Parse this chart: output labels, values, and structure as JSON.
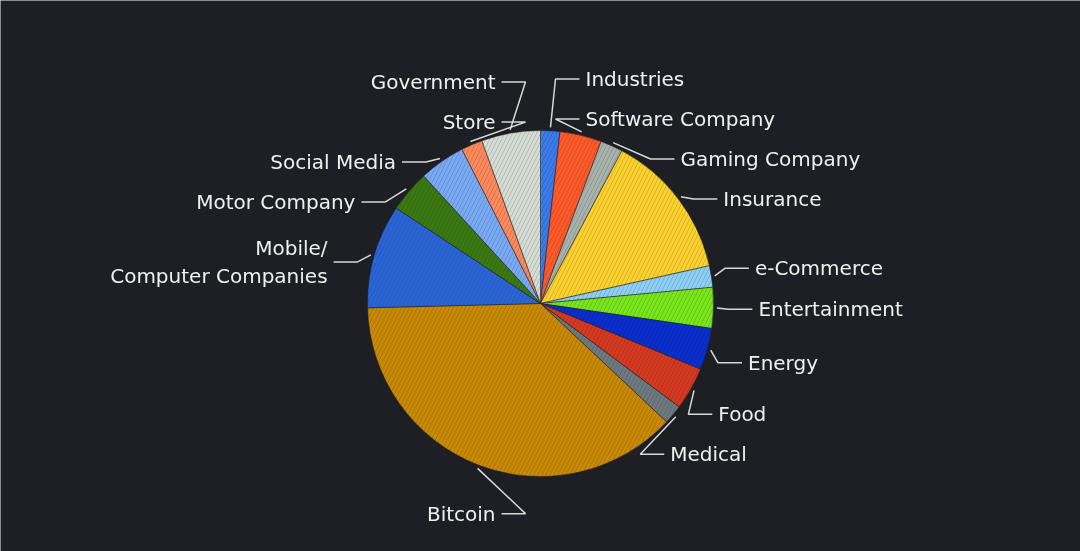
{
  "chart_data": {
    "type": "pie",
    "categories": [
      "Industries",
      "Software Company",
      "Gaming Company",
      "Insurance",
      "e-Commerce",
      "Entertainment",
      "Energy",
      "Food",
      "Medical",
      "Bitcoin",
      "Mobile/\nComputer Companies",
      "Motor Company",
      "Social Media",
      "Store",
      "Government"
    ],
    "values": [
      1.8,
      3.9,
      2.1,
      13.7,
      2.0,
      3.8,
      3.9,
      4.0,
      1.8,
      37.6,
      9.7,
      3.9,
      4.3,
      2.0,
      5.5
    ],
    "colors": [
      "#3b7bea",
      "#ff5a2a",
      "#a9b3ad",
      "#fdd22e",
      "#8ed0f5",
      "#79e61c",
      "#0b2fcf",
      "#d63a20",
      "#6e7a80",
      "#c98a06",
      "#2a66d8",
      "#3b7a13",
      "#7aaaf5",
      "#ff8a5c",
      "#d4dcd3"
    ]
  }
}
